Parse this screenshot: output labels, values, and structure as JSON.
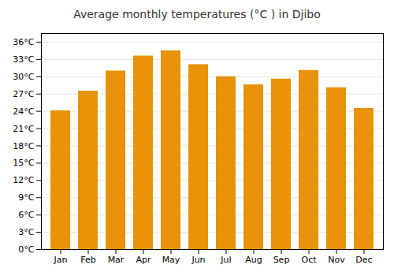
{
  "chart_data": {
    "type": "bar",
    "title": "Average monthly temperatures (°C ) in Djibo",
    "categories": [
      "Jan",
      "Feb",
      "Mar",
      "Apr",
      "May",
      "Jun",
      "Jul",
      "Aug",
      "Sep",
      "Oct",
      "Nov",
      "Dec"
    ],
    "values": [
      24.1,
      27.5,
      31.0,
      33.6,
      34.5,
      32.1,
      30.0,
      28.6,
      29.6,
      31.1,
      28.1,
      24.5
    ],
    "color": "#E8920A",
    "ylim": [
      0,
      37.5
    ],
    "yticks": [
      {
        "value": 0,
        "label": "0°C"
      },
      {
        "value": 3,
        "label": "3°C"
      },
      {
        "value": 6,
        "label": "6°C"
      },
      {
        "value": 9,
        "label": "9°C"
      },
      {
        "value": 12,
        "label": "12°C"
      },
      {
        "value": 15,
        "label": "15°C"
      },
      {
        "value": 18,
        "label": "18°C"
      },
      {
        "value": 21,
        "label": "21°C"
      },
      {
        "value": 24,
        "label": "24°C"
      },
      {
        "value": 27,
        "label": "27°C"
      },
      {
        "value": 30,
        "label": "30°C"
      },
      {
        "value": 33,
        "label": "33°C"
      },
      {
        "value": 36,
        "label": "36°C"
      }
    ],
    "grid": true
  }
}
